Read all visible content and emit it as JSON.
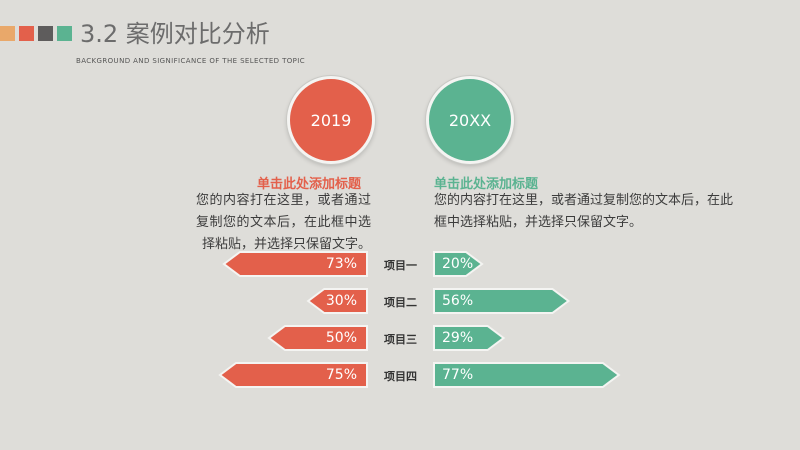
{
  "header": {
    "title": "3.2 案例对比分析",
    "subtitle": "BACKGROUND AND SIGNIFICANCE OF THE SELECTED TOPIC",
    "strip_colors": [
      "#e9a86a",
      "#e3604b",
      "#5e5c5c",
      "#5bb391"
    ]
  },
  "left": {
    "year": "2019",
    "heading": "单击此处添加标题",
    "body": "您的内容打在这里，或者通过复制您的文本后，在此框中选择粘贴，并选择只保留文字。",
    "color": "#e3604b"
  },
  "right": {
    "year": "20XX",
    "heading": "单击此处添加标题",
    "body": "您的内容打在这里，或者通过复制您的文本后，在此框中选择粘贴，并选择只保留文字。",
    "color": "#5bb391"
  },
  "items": [
    {
      "label": "项目一",
      "left_value": 73,
      "right_value": 20,
      "left_text": "73%",
      "right_text": "20%"
    },
    {
      "label": "项目二",
      "left_value": 30,
      "right_value": 56,
      "left_text": "30%",
      "right_text": "56%"
    },
    {
      "label": "项目三",
      "left_value": 50,
      "right_value": 29,
      "left_text": "50%",
      "right_text": "29%"
    },
    {
      "label": "项目四",
      "left_value": 75,
      "right_value": 77,
      "left_text": "75%",
      "right_text": "77%"
    }
  ]
}
